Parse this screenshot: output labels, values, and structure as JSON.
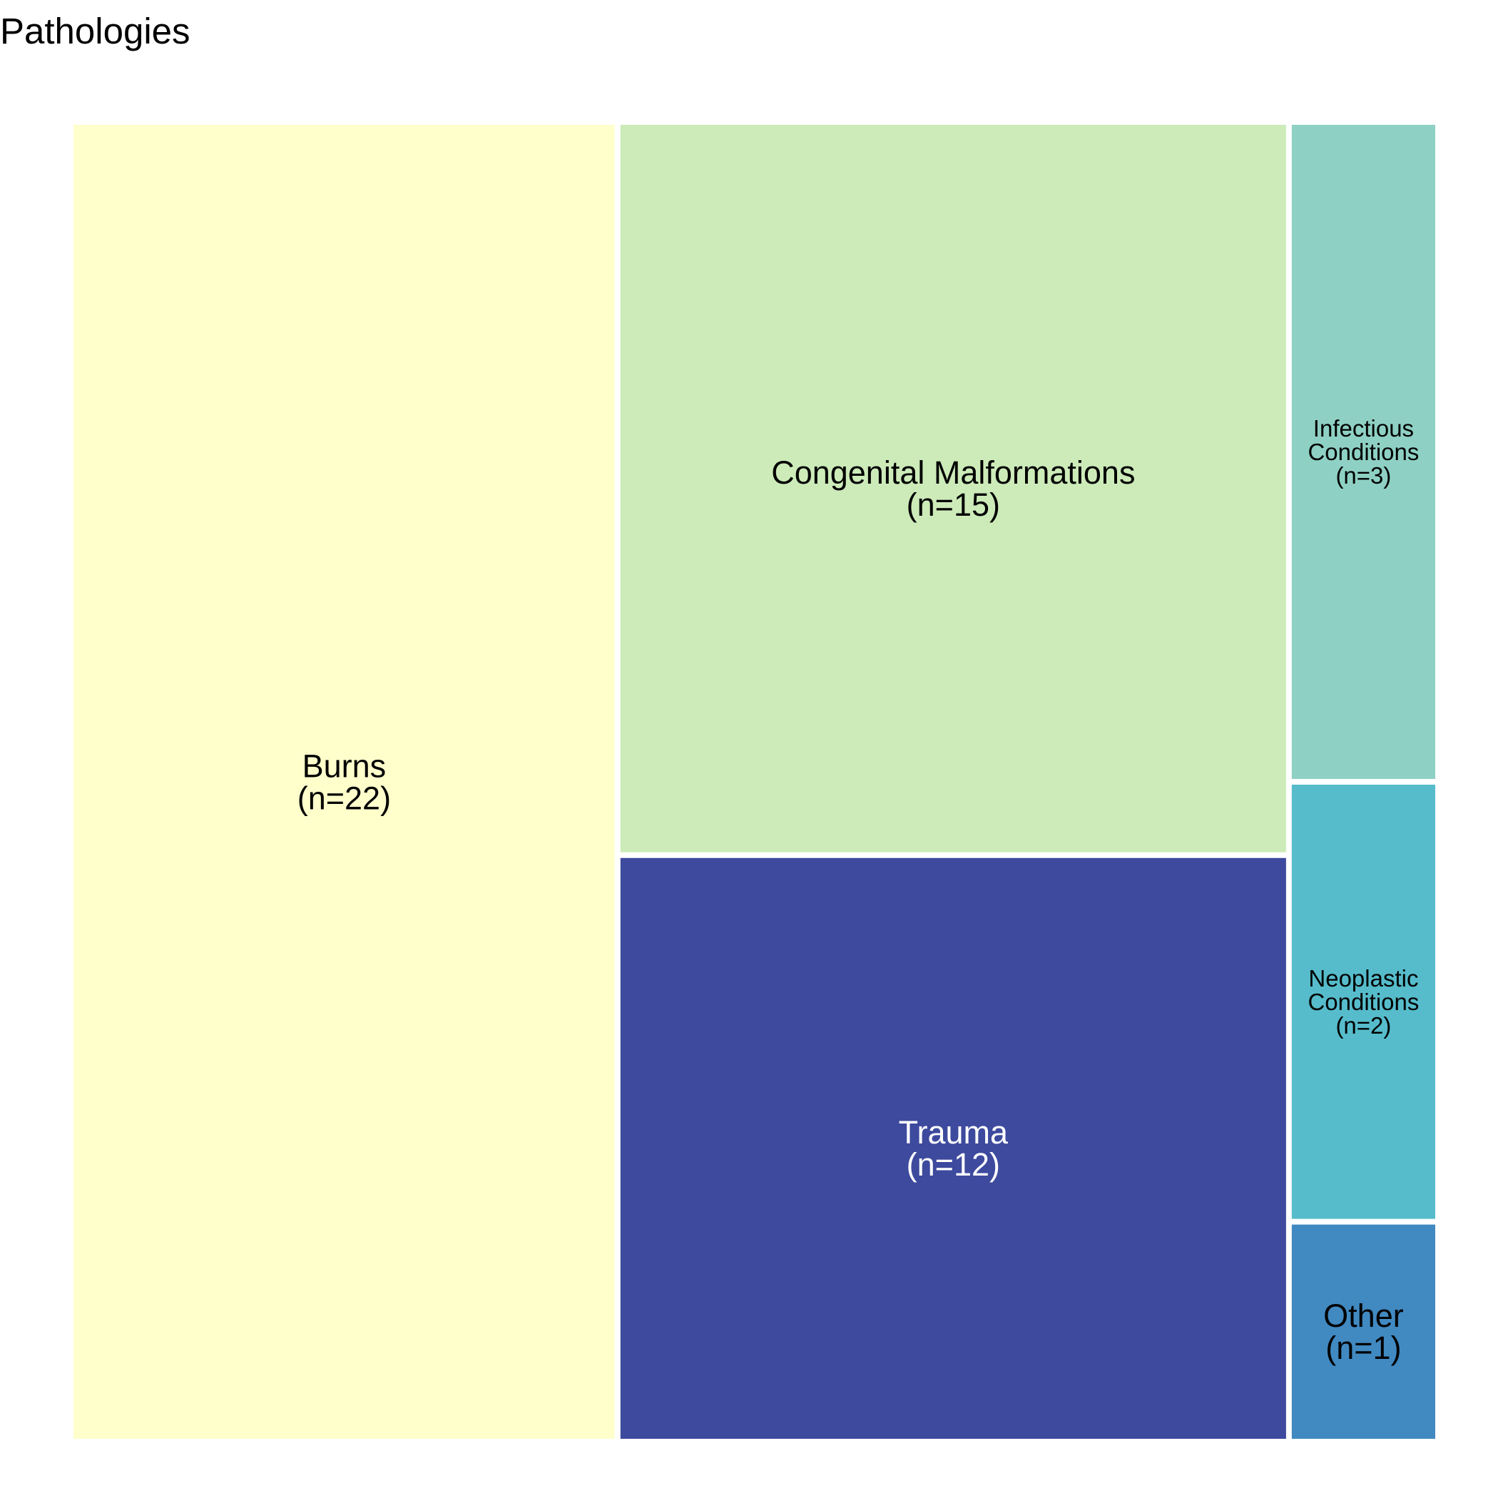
{
  "chart_data": {
    "type": "treemap",
    "title": "Pathologies",
    "unit_format": "(n=%)",
    "items": [
      {
        "name": "Burns",
        "value": 22,
        "value_label": "(n=22)",
        "color": "#ffffcc",
        "text_color": "#000000"
      },
      {
        "name": "Congenital Malformations",
        "value": 15,
        "value_label": "(n=15)",
        "color": "#ccebb9",
        "text_color": "#000000"
      },
      {
        "name": "Trauma",
        "value": 12,
        "value_label": "(n=12)",
        "color": "#3d4a9d",
        "text_color": "#ffffff"
      },
      {
        "name": "Infectious Conditions",
        "value": 3,
        "value_label": "(n=3)",
        "color": "#8ed1c4",
        "text_color": "#000000"
      },
      {
        "name": "Neoplastic Conditions",
        "value": 2,
        "value_label": "(n=2)",
        "color": "#56bccb",
        "text_color": "#000000"
      },
      {
        "name": "Other",
        "value": 1,
        "value_label": "(n=1)",
        "color": "#4189c1",
        "text_color": "#000000"
      }
    ]
  }
}
